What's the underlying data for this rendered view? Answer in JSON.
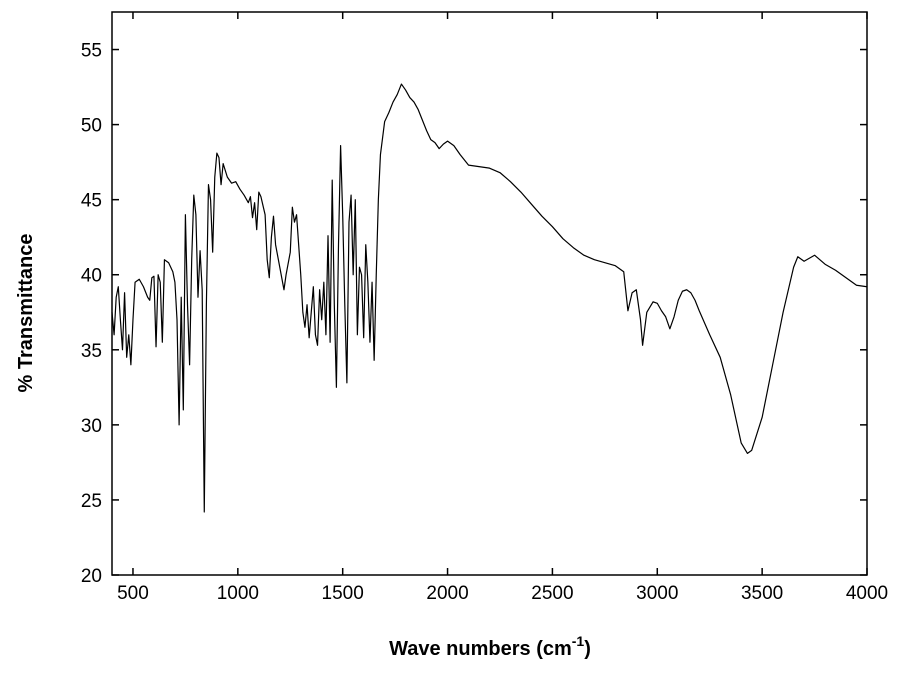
{
  "chart_data": {
    "type": "line",
    "x_label": [
      "Wave numbers (cm",
      "-1",
      ")"
    ],
    "y_label": "% Transmittance",
    "color": "#000000",
    "xlim": [
      400,
      4000
    ],
    "ylim": [
      20,
      57.5
    ],
    "xticks": [
      500,
      1000,
      1500,
      2000,
      2500,
      3000,
      3500,
      4000
    ],
    "yticks": [
      20,
      25,
      30,
      35,
      40,
      45,
      50,
      55
    ],
    "x": [
      400,
      410,
      420,
      430,
      440,
      450,
      460,
      470,
      480,
      490,
      500,
      510,
      530,
      550,
      570,
      580,
      590,
      600,
      610,
      620,
      630,
      640,
      650,
      670,
      690,
      700,
      710,
      720,
      730,
      740,
      750,
      760,
      770,
      780,
      790,
      800,
      810,
      820,
      830,
      840,
      850,
      860,
      870,
      880,
      890,
      900,
      910,
      920,
      930,
      950,
      970,
      990,
      1010,
      1030,
      1050,
      1060,
      1070,
      1080,
      1090,
      1100,
      1110,
      1130,
      1140,
      1150,
      1160,
      1170,
      1180,
      1200,
      1220,
      1230,
      1250,
      1260,
      1270,
      1280,
      1290,
      1300,
      1310,
      1320,
      1330,
      1340,
      1350,
      1360,
      1370,
      1380,
      1390,
      1400,
      1410,
      1420,
      1430,
      1440,
      1450,
      1460,
      1470,
      1480,
      1490,
      1500,
      1510,
      1520,
      1530,
      1540,
      1550,
      1560,
      1570,
      1580,
      1590,
      1600,
      1610,
      1620,
      1630,
      1640,
      1650,
      1660,
      1670,
      1680,
      1700,
      1720,
      1740,
      1760,
      1780,
      1800,
      1820,
      1840,
      1860,
      1880,
      1900,
      1920,
      1940,
      1960,
      1980,
      2000,
      2030,
      2060,
      2100,
      2150,
      2200,
      2250,
      2300,
      2350,
      2400,
      2450,
      2500,
      2550,
      2600,
      2650,
      2700,
      2750,
      2800,
      2840,
      2860,
      2880,
      2900,
      2920,
      2930,
      2950,
      2980,
      3000,
      3020,
      3040,
      3060,
      3080,
      3100,
      3120,
      3140,
      3160,
      3180,
      3200,
      3250,
      3300,
      3350,
      3400,
      3430,
      3450,
      3500,
      3550,
      3600,
      3650,
      3670,
      3700,
      3750,
      3800,
      3850,
      3900,
      3950,
      4000
    ],
    "values": [
      37.5,
      36,
      38.5,
      39.2,
      37,
      35,
      38.8,
      34.5,
      36,
      34,
      37,
      39.5,
      39.7,
      39.2,
      38.5,
      38.3,
      39.8,
      39.9,
      35.2,
      40,
      39.5,
      35.5,
      41,
      40.8,
      40.2,
      39.5,
      37,
      30,
      38.5,
      31,
      44,
      38,
      34,
      41,
      45.3,
      44,
      38.5,
      41.6,
      39,
      24.2,
      38,
      46,
      45,
      41.5,
      46.5,
      48.1,
      47.8,
      46,
      47.4,
      46.5,
      46.1,
      46.2,
      45.7,
      45.3,
      44.8,
      45.2,
      43.8,
      44.8,
      43,
      45.5,
      45.2,
      44,
      41,
      39.8,
      42.5,
      43.9,
      42,
      40.5,
      39,
      40,
      41.5,
      44.5,
      43.5,
      44,
      42,
      40,
      37.5,
      36.5,
      38,
      35.8,
      37.5,
      39.2,
      36,
      35.3,
      39,
      37,
      39.5,
      36,
      42.6,
      35.5,
      46.3,
      38,
      32.5,
      42,
      48.6,
      44,
      38,
      32.8,
      43.5,
      45.3,
      40,
      45,
      36,
      40.5,
      40,
      35.8,
      42,
      39.5,
      35.5,
      39.5,
      34.3,
      40,
      45,
      48,
      50.2,
      50.8,
      51.5,
      52,
      52.7,
      52.3,
      51.8,
      51.5,
      51,
      50.3,
      49.6,
      49,
      48.8,
      48.4,
      48.7,
      48.9,
      48.6,
      48,
      47.3,
      47.2,
      47.1,
      46.8,
      46.2,
      45.5,
      44.7,
      43.9,
      43.2,
      42.4,
      41.8,
      41.3,
      41,
      40.8,
      40.6,
      40.2,
      37.6,
      38.8,
      39,
      37,
      35.3,
      37.5,
      38.2,
      38.1,
      37.6,
      37.2,
      36.4,
      37.2,
      38.3,
      38.9,
      39,
      38.8,
      38.3,
      37.6,
      36,
      34.5,
      32,
      28.8,
      28.1,
      28.3,
      30.5,
      34,
      37.5,
      40.5,
      41.2,
      40.9,
      41.3,
      40.7,
      40.3,
      39.8,
      39.3,
      39.2
    ]
  }
}
